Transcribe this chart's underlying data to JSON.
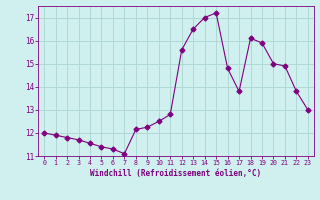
{
  "x": [
    0,
    1,
    2,
    3,
    4,
    5,
    6,
    7,
    8,
    9,
    10,
    11,
    12,
    13,
    14,
    15,
    16,
    17,
    18,
    19,
    20,
    21,
    22,
    23
  ],
  "y": [
    12.0,
    11.9,
    11.8,
    11.7,
    11.55,
    11.4,
    11.3,
    11.1,
    12.15,
    12.25,
    12.5,
    12.8,
    15.6,
    16.5,
    17.0,
    17.2,
    14.8,
    13.8,
    16.1,
    15.9,
    15.0,
    14.9,
    13.8,
    13.0
  ],
  "line_color": "#800080",
  "marker": "D",
  "marker_size": 2.5,
  "bg_color": "#cff0ee",
  "grid_color": "#b0d8d4",
  "xlabel": "Windchill (Refroidissement éolien,°C)",
  "tick_color": "#800080",
  "ylim": [
    11.0,
    17.5
  ],
  "yticks": [
    11,
    12,
    13,
    14,
    15,
    16,
    17
  ],
  "xticks": [
    0,
    1,
    2,
    3,
    4,
    5,
    6,
    7,
    8,
    9,
    10,
    11,
    12,
    13,
    14,
    15,
    16,
    17,
    18,
    19,
    20,
    21,
    22,
    23
  ]
}
